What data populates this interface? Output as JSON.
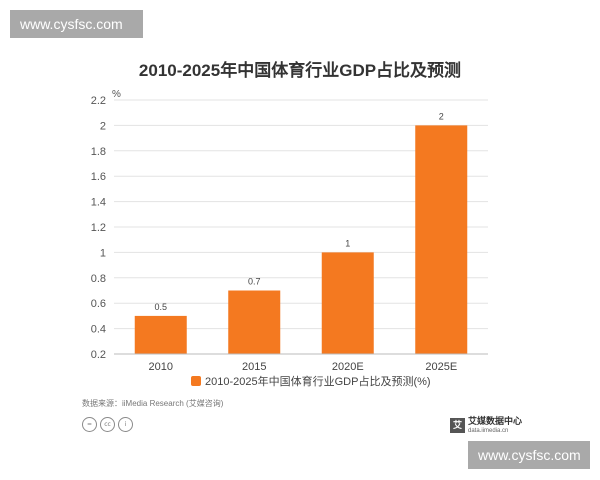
{
  "watermark_top": "www.cysfsc.com",
  "watermark_bottom": "www.cysfsc.com",
  "source_line": "数据来源：iiMedia Research (艾媒咨询)",
  "brand": {
    "name": "艾媒数据中心",
    "url": "data.iimedia.cn"
  },
  "colors": {
    "bar": "#f47920",
    "axis": "#bbbbbb",
    "grid": "#e3e3e3"
  },
  "chart_data": {
    "type": "bar",
    "title": "2010-2025年中国体育行业GDP占比及预测",
    "unit": "%",
    "categories": [
      "2010",
      "2015",
      "2020E",
      "2025E"
    ],
    "series": [
      {
        "name": "2010-2025年中国体育行业GDP占比及预测(%)",
        "values": [
          0.5,
          0.7,
          1,
          2
        ]
      }
    ],
    "data_labels": [
      "0.5",
      "0.7",
      "1",
      "2"
    ],
    "ylim": [
      0.2,
      2.2
    ],
    "yticks": [
      "0.2",
      "0.4",
      "0.6",
      "0.8",
      "1",
      "1.2",
      "1.4",
      "1.6",
      "1.8",
      "2",
      "2.2"
    ],
    "grid": true,
    "legend_position": "bottom"
  }
}
